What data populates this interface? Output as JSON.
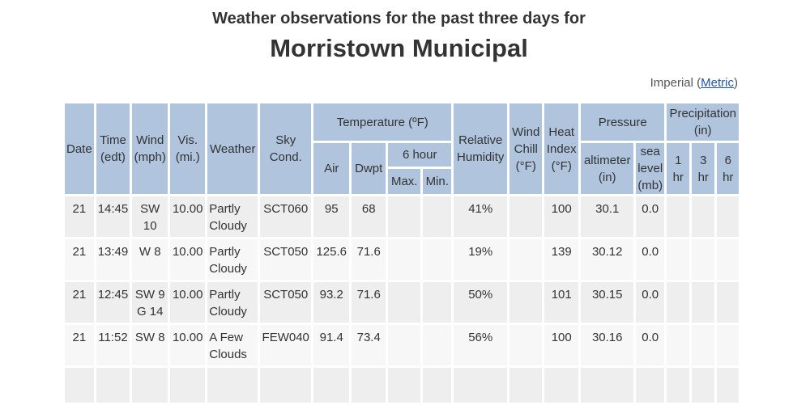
{
  "header": {
    "subtitle": "Weather observations for the past three days for",
    "station": "Morristown Municipal"
  },
  "units": {
    "imperial": "Imperial",
    "open_paren": "(",
    "metric": "Metric",
    "close_paren": ")"
  },
  "columns": {
    "date": "Date",
    "time": [
      "Time",
      "(edt)"
    ],
    "wind": [
      "Wind",
      "(mph)"
    ],
    "vis": [
      "Vis.",
      "(mi.)"
    ],
    "weather": "Weather",
    "sky": [
      "Sky",
      "Cond."
    ],
    "temperature": "Temperature (ºF)",
    "air": "Air",
    "dwpt": "Dwpt",
    "six_hour": "6 hour",
    "max": "Max.",
    "min": "Min.",
    "humidity": [
      "Relative",
      "Humidity"
    ],
    "wind_chill": [
      "Wind",
      "Chill",
      "(°F)"
    ],
    "heat_index": [
      "Heat",
      "Index",
      "(°F)"
    ],
    "pressure": "Pressure",
    "altimeter": [
      "altimeter",
      "(in)"
    ],
    "sea_level": [
      "sea",
      "level",
      "(mb)"
    ],
    "precipitation": [
      "Precipitation",
      "(in)"
    ],
    "p1": [
      "1",
      "hr"
    ],
    "p3": [
      "3",
      "hr"
    ],
    "p6": [
      "6",
      "hr"
    ]
  },
  "rows": [
    {
      "date": "21",
      "time": "14:45",
      "wind": [
        "SW",
        "10"
      ],
      "vis": "10.00",
      "weather": [
        "Partly",
        "Cloudy"
      ],
      "sky": "SCT060",
      "air": "95",
      "dwpt": "68",
      "max": "",
      "min": "",
      "humidity": "41%",
      "wind_chill": "",
      "heat_index": "100",
      "altimeter": "30.1",
      "sea_level": "0.0",
      "p1": "",
      "p3": "",
      "p6": ""
    },
    {
      "date": "21",
      "time": "13:49",
      "wind": [
        "W 8",
        ""
      ],
      "vis": "10.00",
      "weather": [
        "Partly",
        "Cloudy"
      ],
      "sky": "SCT050",
      "air": "125.6",
      "dwpt": "71.6",
      "max": "",
      "min": "",
      "humidity": "19%",
      "wind_chill": "",
      "heat_index": "139",
      "altimeter": "30.12",
      "sea_level": "0.0",
      "p1": "",
      "p3": "",
      "p6": ""
    },
    {
      "date": "21",
      "time": "12:45",
      "wind": [
        "SW 9",
        "G 14"
      ],
      "vis": "10.00",
      "weather": [
        "Partly",
        "Cloudy"
      ],
      "sky": "SCT050",
      "air": "93.2",
      "dwpt": "71.6",
      "max": "",
      "min": "",
      "humidity": "50%",
      "wind_chill": "",
      "heat_index": "101",
      "altimeter": "30.15",
      "sea_level": "0.0",
      "p1": "",
      "p3": "",
      "p6": ""
    },
    {
      "date": "21",
      "time": "11:52",
      "wind": [
        "SW 8",
        ""
      ],
      "vis": "10.00",
      "weather": [
        "A Few",
        "Clouds"
      ],
      "sky": "FEW040",
      "air": "91.4",
      "dwpt": "73.4",
      "max": "",
      "min": "",
      "humidity": "56%",
      "wind_chill": "",
      "heat_index": "100",
      "altimeter": "30.16",
      "sea_level": "0.0",
      "p1": "",
      "p3": "",
      "p6": ""
    }
  ]
}
